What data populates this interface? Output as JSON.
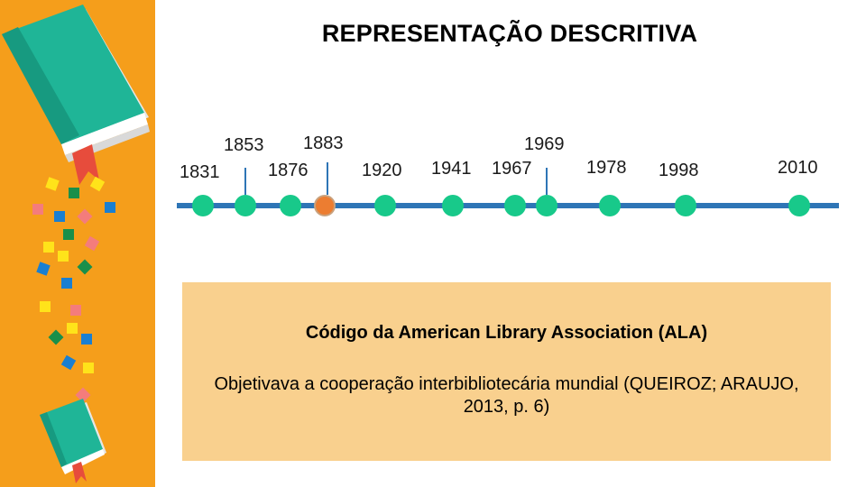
{
  "slide": {
    "title": "REPRESENTAÇÃO DESCRITIVA"
  },
  "timeline": {
    "years": [
      "1831",
      "1853",
      "1876",
      "1883",
      "1920",
      "1941",
      "1967",
      "1969",
      "1978",
      "1998",
      "2010"
    ],
    "active_year": "1883",
    "colors": {
      "line": "#2e75b6",
      "dot": "#18c98a",
      "active_dot": "#ec7d31"
    }
  },
  "info_box": {
    "heading": "Código da American Library Association (ALA)",
    "body_line1": "Objetivava a cooperação interbibliotecária mundial (QUEIROZ; ARAUJO,",
    "body_line2": "2013, p. 6)"
  },
  "decor": {
    "sidebar_color": "#f59e1b",
    "icons": [
      "book-icon",
      "book-icon",
      "confetti-squares"
    ]
  }
}
